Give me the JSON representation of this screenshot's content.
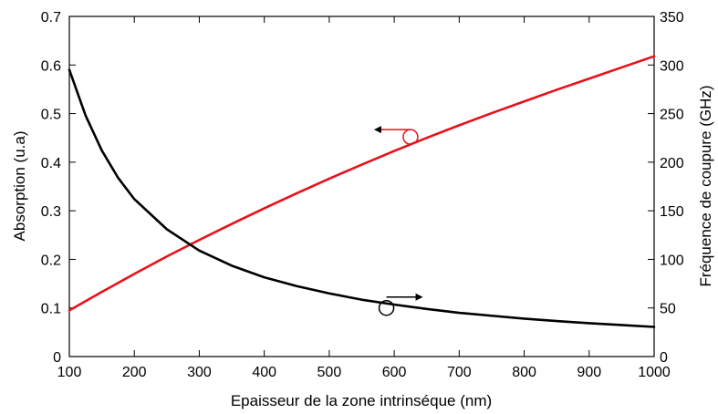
{
  "chart_data": {
    "type": "line",
    "xlabel": "Epaisseur de la zone intrinséque (nm)",
    "ylabel_left": "Absorption (u.a)",
    "ylabel_right": "Fréquence de coupure (GHz)",
    "xlim": [
      100,
      1000
    ],
    "ylim_left": [
      0,
      0.7
    ],
    "ylim_right": [
      0,
      350
    ],
    "x_ticks": [
      "100",
      "200",
      "300",
      "400",
      "500",
      "600",
      "700",
      "800",
      "900",
      "1000"
    ],
    "y_left_ticks": [
      "0",
      "0.1",
      "0.2",
      "0.3",
      "0.4",
      "0.5",
      "0.6",
      "0.7"
    ],
    "y_right_ticks": [
      "0",
      "50",
      "100",
      "150",
      "200",
      "250",
      "300",
      "350"
    ],
    "grid": false,
    "series": [
      {
        "axis": "left",
        "color": "#e8111a",
        "x": [
          100,
          150,
          200,
          250,
          300,
          350,
          400,
          450,
          500,
          550,
          600,
          650,
          700,
          750,
          800,
          850,
          900,
          950,
          1000
        ],
        "values": [
          0.095,
          0.133,
          0.17,
          0.206,
          0.24,
          0.273,
          0.305,
          0.336,
          0.366,
          0.395,
          0.423,
          0.45,
          0.476,
          0.501,
          0.525,
          0.549,
          0.572,
          0.595,
          0.618
        ]
      },
      {
        "axis": "right",
        "color": "#000000",
        "x": [
          100,
          125,
          150,
          175,
          200,
          250,
          300,
          350,
          400,
          450,
          500,
          550,
          600,
          650,
          700,
          750,
          800,
          850,
          900,
          950,
          1000
        ],
        "values": [
          295,
          248,
          212,
          184,
          162,
          131,
          109,
          93.5,
          81.5,
          72.5,
          65,
          58.5,
          53.5,
          49,
          45,
          42,
          39,
          36.5,
          34.3,
          32.4,
          30.5
        ]
      }
    ],
    "annotations": [
      {
        "series": 0,
        "x": 625,
        "y": 0.452,
        "arrow": "left"
      },
      {
        "series": 1,
        "x": 588,
        "y": 50,
        "arrow": "right"
      }
    ]
  }
}
